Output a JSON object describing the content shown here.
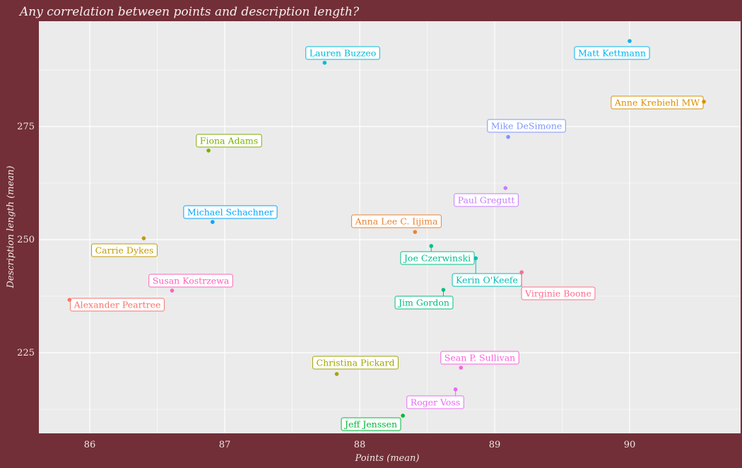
{
  "chart_data": {
    "type": "scatter",
    "title": "Any correlation between points and description length?",
    "xlabel": "Points (mean)",
    "ylabel": "Description length (mean)",
    "xlim": [
      85.63,
      90.75
    ],
    "ylim": [
      208,
      296
    ],
    "x_ticks": [
      86,
      87,
      88,
      89,
      90
    ],
    "y_ticks": [
      225,
      250,
      275
    ],
    "grid": true,
    "legend": "none",
    "colors": {
      "panel": "#EBEBEB",
      "background": "#722F37",
      "grid": "#FFFFFF"
    },
    "points": [
      {
        "name": "Alexander Peartree",
        "x": 85.85,
        "y": 236.7,
        "color": "#F8766D"
      },
      {
        "name": "Anna Lee C. Iijima",
        "x": 88.41,
        "y": 251.7,
        "color": "#EA8331"
      },
      {
        "name": "Anne Krebiehl MW",
        "x": 90.55,
        "y": 280.5,
        "color": "#D89000"
      },
      {
        "name": "Carrie Dykes",
        "x": 86.4,
        "y": 250.3,
        "color": "#C09B00"
      },
      {
        "name": "Christina Pickard",
        "x": 87.83,
        "y": 220.3,
        "color": "#A3A500"
      },
      {
        "name": "Fiona Adams",
        "x": 86.88,
        "y": 269.7,
        "color": "#7CAE00"
      },
      {
        "name": "Jeff Jenssen",
        "x": 88.32,
        "y": 211.1,
        "color": "#00BA38"
      },
      {
        "name": "Jim Gordon",
        "x": 88.62,
        "y": 238.9,
        "color": "#00BF7D"
      },
      {
        "name": "Joe Czerwinski",
        "x": 88.53,
        "y": 248.6,
        "color": "#00C08B"
      },
      {
        "name": "Kerin O'Keefe",
        "x": 88.86,
        "y": 245.9,
        "color": "#00BFB4"
      },
      {
        "name": "Lauren Buzzeo",
        "x": 87.74,
        "y": 289.1,
        "color": "#00BCD8"
      },
      {
        "name": "Matt Kettmann",
        "x": 90.0,
        "y": 293.9,
        "color": "#00B4EF"
      },
      {
        "name": "Michael Schachner",
        "x": 86.91,
        "y": 253.9,
        "color": "#00A5FF"
      },
      {
        "name": "Mike DeSimone",
        "x": 89.1,
        "y": 272.7,
        "color": "#7F96FF"
      },
      {
        "name": "Paul Gregutt",
        "x": 89.08,
        "y": 261.4,
        "color": "#C77CFF"
      },
      {
        "name": "Roger Voss",
        "x": 88.71,
        "y": 216.9,
        "color": "#E76BF3"
      },
      {
        "name": "Sean P. Sullivan",
        "x": 88.75,
        "y": 221.7,
        "color": "#FA62DB"
      },
      {
        "name": "Susan Kostrzewa",
        "x": 86.61,
        "y": 238.75,
        "color": "#FF62BC"
      },
      {
        "name": "Virginie Boone",
        "x": 89.2,
        "y": 242.8,
        "color": "#FF6C91"
      }
    ]
  }
}
